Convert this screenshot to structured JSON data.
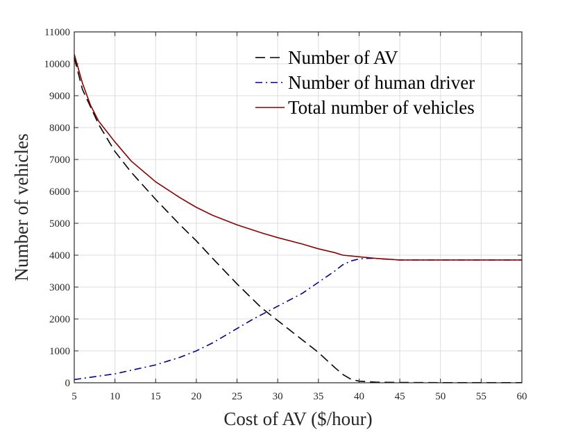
{
  "chart_data": {
    "type": "line",
    "title": "",
    "xlabel": "Cost of AV ($/hour)",
    "ylabel": "Number of vehicles",
    "xlim": [
      5,
      60
    ],
    "ylim": [
      0,
      11000
    ],
    "xticks": [
      5,
      10,
      15,
      20,
      25,
      30,
      35,
      40,
      45,
      50,
      55,
      60
    ],
    "yticks": [
      0,
      1000,
      2000,
      3000,
      4000,
      5000,
      6000,
      7000,
      8000,
      9000,
      10000,
      11000
    ],
    "grid": true,
    "legend_position": "top-right",
    "series": [
      {
        "name": "Number of AV",
        "color": "#000000",
        "dash": "dashed",
        "x": [
          5,
          6,
          8,
          10,
          12,
          15,
          18,
          20,
          22,
          25,
          28,
          30,
          32,
          35,
          37,
          38,
          39,
          40,
          42,
          45,
          50,
          55,
          60
        ],
        "y": [
          10200,
          9200,
          8100,
          7250,
          6600,
          5750,
          4950,
          4450,
          3900,
          3100,
          2350,
          1950,
          1550,
          950,
          480,
          260,
          110,
          50,
          20,
          10,
          5,
          5,
          5
        ]
      },
      {
        "name": "Number of human driver",
        "color": "#00008b",
        "dash": "dashdot",
        "x": [
          5,
          10,
          15,
          18,
          20,
          22,
          25,
          27,
          30,
          33,
          35,
          37,
          38,
          39,
          40,
          41,
          42,
          43,
          45,
          50,
          55,
          60
        ],
        "y": [
          100,
          280,
          560,
          800,
          1000,
          1250,
          1700,
          2000,
          2400,
          2800,
          3150,
          3500,
          3700,
          3820,
          3880,
          3900,
          3900,
          3880,
          3850,
          3850,
          3850,
          3850
        ]
      },
      {
        "name": "Total number of vehicles",
        "color": "#8b0000",
        "dash": "solid",
        "x": [
          5,
          6,
          7,
          8,
          10,
          12,
          15,
          18,
          20,
          22,
          25,
          28,
          30,
          33,
          35,
          37,
          38,
          40,
          42,
          45,
          50,
          55,
          60
        ],
        "y": [
          10300,
          9400,
          8700,
          8200,
          7550,
          6950,
          6300,
          5800,
          5500,
          5250,
          4950,
          4700,
          4550,
          4350,
          4200,
          4080,
          4000,
          3950,
          3900,
          3850,
          3850,
          3850,
          3850
        ]
      }
    ]
  }
}
